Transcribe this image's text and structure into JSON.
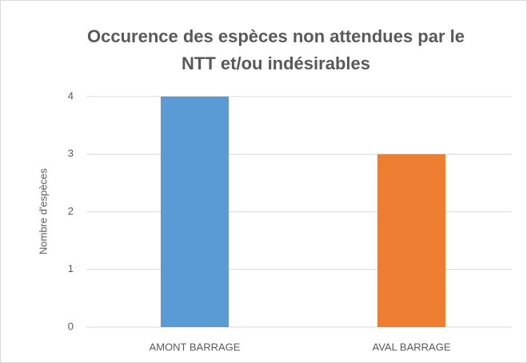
{
  "chart_data": {
    "type": "bar",
    "title": [
      "Occurence des espèces non attendues par le",
      "NTT et/ou indésirables"
    ],
    "ylabel": "Nombre d'espèces",
    "categories": [
      "AMONT BARRAGE",
      "AVAL BARRAGE"
    ],
    "values": [
      4,
      3
    ],
    "colors": [
      "#5b9bd5",
      "#ed7d31"
    ],
    "ylim": [
      0,
      4
    ],
    "yticks": [
      0,
      1,
      2,
      3,
      4
    ],
    "grid": true
  }
}
